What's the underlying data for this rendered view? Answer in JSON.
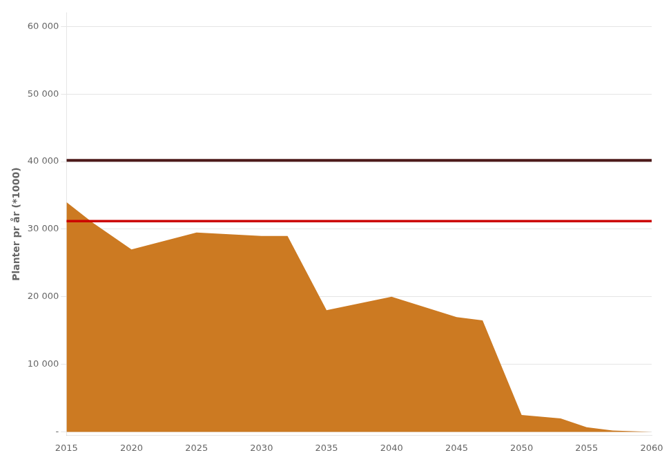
{
  "chart_data": {
    "type": "area",
    "x": [
      2015,
      2017,
      2020,
      2025,
      2030,
      2032,
      2035,
      2040,
      2045,
      2047,
      2050,
      2053,
      2055,
      2057,
      2060
    ],
    "values": [
      34000,
      31000,
      27000,
      29500,
      29000,
      29000,
      18000,
      20000,
      17000,
      16500,
      2500,
      2000,
      700,
      200,
      0
    ],
    "color": "#cc7a22",
    "hlines": [
      {
        "value": 40200,
        "color": "#4d1a1a"
      },
      {
        "value": 31200,
        "color": "#cc0000"
      }
    ],
    "xlim": [
      2015,
      2060
    ],
    "ylim": [
      -500,
      62000
    ],
    "xticks": [
      2015,
      2020,
      2025,
      2030,
      2035,
      2040,
      2045,
      2050,
      2055,
      2060
    ],
    "yticks": [
      {
        "value": 0,
        "label": "-"
      },
      {
        "value": 10000,
        "label": "10 000"
      },
      {
        "value": 20000,
        "label": "20 000"
      },
      {
        "value": 30000,
        "label": "30 000"
      },
      {
        "value": 40000,
        "label": "40 000"
      },
      {
        "value": 50000,
        "label": "50 000"
      },
      {
        "value": 60000,
        "label": "60 000"
      }
    ],
    "ylabel": "Planter pr år (*1000)",
    "grid": "y"
  }
}
